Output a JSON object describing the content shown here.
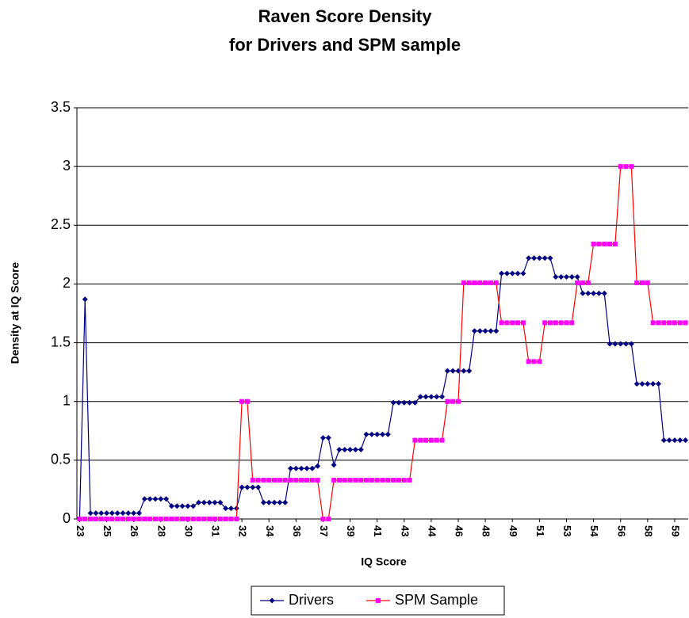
{
  "chart_data": {
    "type": "line",
    "title": "Raven Score Density",
    "subtitle": "for Drivers and SPM sample",
    "x_label": "IQ Score",
    "y_label": "Density at IQ  Score",
    "categories": [
      "23",
      null,
      null,
      null,
      null,
      "25",
      null,
      null,
      null,
      null,
      "26",
      null,
      null,
      null,
      null,
      "28",
      null,
      null,
      null,
      null,
      "30",
      null,
      null,
      null,
      null,
      "31",
      null,
      null,
      null,
      null,
      "32",
      null,
      null,
      null,
      null,
      "34",
      null,
      null,
      null,
      null,
      "36",
      null,
      null,
      null,
      null,
      "37",
      null,
      null,
      null,
      null,
      "39",
      null,
      null,
      null,
      null,
      "41",
      null,
      null,
      null,
      null,
      "43",
      null,
      null,
      null,
      null,
      "44",
      null,
      null,
      null,
      null,
      "46",
      null,
      null,
      null,
      null,
      "48",
      null,
      null,
      null,
      null,
      "49",
      null,
      null,
      null,
      null,
      "51",
      null,
      null,
      null,
      null,
      "53",
      null,
      null,
      null,
      null,
      "54",
      null,
      null,
      null,
      null,
      "56",
      null,
      null,
      null,
      null,
      "58",
      null,
      null,
      null,
      null,
      "59",
      null,
      null
    ],
    "series": [
      {
        "name": "Drivers",
        "color": "#000080",
        "marker_color": "#000080",
        "marker": "diamond",
        "values": [
          0,
          1.87,
          0.05,
          0.05,
          0.05,
          0.05,
          0.05,
          0.05,
          0.05,
          0.05,
          0.05,
          0.05,
          0.17,
          0.17,
          0.17,
          0.17,
          0.17,
          0.11,
          0.11,
          0.11,
          0.11,
          0.11,
          0.14,
          0.14,
          0.14,
          0.14,
          0.14,
          0.09,
          0.09,
          0.09,
          0.27,
          0.27,
          0.27,
          0.27,
          0.14,
          0.14,
          0.14,
          0.14,
          0.14,
          0.43,
          0.43,
          0.43,
          0.43,
          0.43,
          0.45,
          0.69,
          0.69,
          0.46,
          0.59,
          0.59,
          0.59,
          0.59,
          0.59,
          0.72,
          0.72,
          0.72,
          0.72,
          0.72,
          0.99,
          0.99,
          0.99,
          0.99,
          0.99,
          1.04,
          1.04,
          1.04,
          1.04,
          1.04,
          1.26,
          1.26,
          1.26,
          1.26,
          1.26,
          1.6,
          1.6,
          1.6,
          1.6,
          1.6,
          2.09,
          2.09,
          2.09,
          2.09,
          2.09,
          2.22,
          2.22,
          2.22,
          2.22,
          2.22,
          2.06,
          2.06,
          2.06,
          2.06,
          2.06,
          1.92,
          1.92,
          1.92,
          1.92,
          1.92,
          1.49,
          1.49,
          1.49,
          1.49,
          1.49,
          1.15,
          1.15,
          1.15,
          1.15,
          1.15,
          0.67,
          0.67,
          0.67,
          0.67,
          0.67
        ]
      },
      {
        "name": "SPM Sample",
        "color": "#FF0000",
        "marker_color": "#FF00FF",
        "marker": "square",
        "values": [
          0,
          0,
          0,
          0,
          0,
          0,
          0,
          0,
          0,
          0,
          0,
          0,
          0,
          0,
          0,
          0,
          0,
          0,
          0,
          0,
          0,
          0,
          0,
          0,
          0,
          0,
          0,
          0,
          0,
          0,
          1,
          1,
          0.33,
          0.33,
          0.33,
          0.33,
          0.33,
          0.33,
          0.33,
          0.33,
          0.33,
          0.33,
          0.33,
          0.33,
          0.33,
          0,
          0,
          0.33,
          0.33,
          0.33,
          0.33,
          0.33,
          0.33,
          0.33,
          0.33,
          0.33,
          0.33,
          0.33,
          0.33,
          0.33,
          0.33,
          0.33,
          0.67,
          0.67,
          0.67,
          0.67,
          0.67,
          0.67,
          1,
          1,
          1,
          2.01,
          2.01,
          2.01,
          2.01,
          2.01,
          2.01,
          2.01,
          1.67,
          1.67,
          1.67,
          1.67,
          1.67,
          1.34,
          1.34,
          1.34,
          1.67,
          1.67,
          1.67,
          1.67,
          1.67,
          1.67,
          2.01,
          2.01,
          2.01,
          2.34,
          2.34,
          2.34,
          2.34,
          2.34,
          3,
          3,
          3,
          2.01,
          2.01,
          2.01,
          1.67,
          1.67,
          1.67,
          1.67,
          1.67,
          1.67,
          1.67
        ]
      }
    ],
    "ylim": [
      0,
      3.5
    ],
    "yticks": [
      0,
      0.5,
      1,
      1.5,
      2,
      2.5,
      3,
      3.5
    ],
    "grid": true,
    "legend": "bottom"
  }
}
